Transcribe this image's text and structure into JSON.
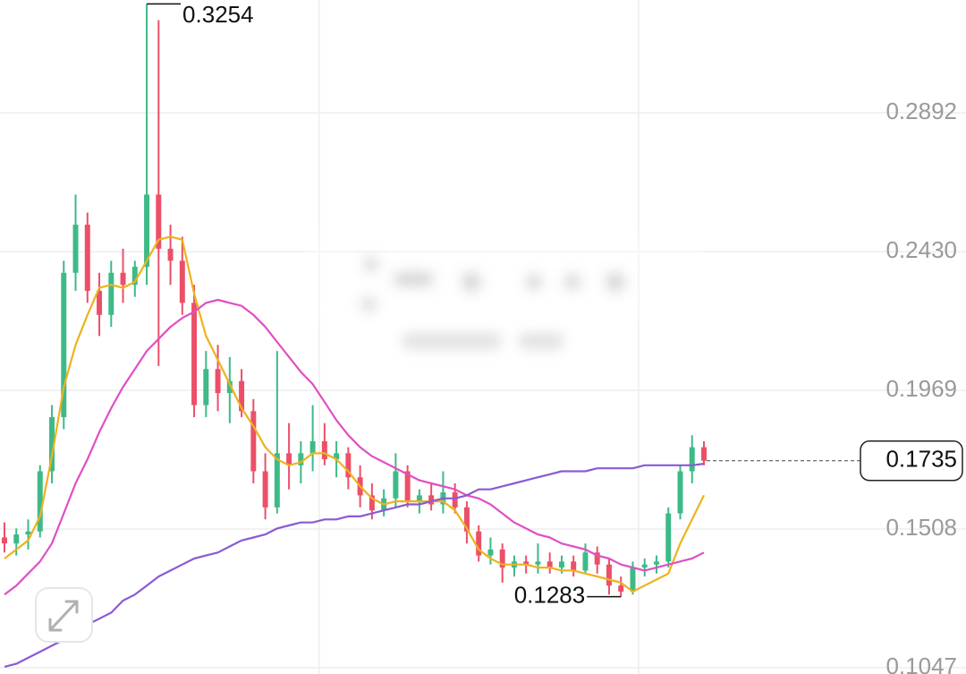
{
  "chart_data": {
    "type": "candlestick",
    "open": [
      0.148,
      0.146,
      0.149,
      0.15,
      0.17,
      0.188,
      0.236,
      0.252,
      0.23,
      0.222,
      0.236,
      0.232,
      0.238,
      0.262,
      0.244,
      0.24,
      0.226,
      0.192,
      0.204,
      0.196,
      0.2,
      0.19,
      0.17,
      0.158,
      0.176,
      0.172,
      0.176,
      0.18,
      0.174,
      0.176,
      0.168,
      0.162,
      0.157,
      0.161,
      0.17,
      0.16,
      0.162,
      0.159,
      0.163,
      0.158,
      0.15,
      0.142,
      0.144,
      0.138,
      0.14,
      0.139,
      0.14,
      0.138,
      0.14,
      0.137,
      0.143,
      0.139,
      0.132,
      0.13,
      0.138,
      0.139,
      0.14,
      0.156,
      0.17,
      0.178
    ],
    "high": [
      0.153,
      0.151,
      0.154,
      0.172,
      0.192,
      0.24,
      0.262,
      0.256,
      0.236,
      0.24,
      0.244,
      0.24,
      0.3254,
      0.32,
      0.252,
      0.248,
      0.232,
      0.21,
      0.212,
      0.208,
      0.204,
      0.194,
      0.176,
      0.21,
      0.186,
      0.18,
      0.192,
      0.186,
      0.18,
      0.178,
      0.172,
      0.166,
      0.164,
      0.176,
      0.172,
      0.164,
      0.166,
      0.17,
      0.166,
      0.16,
      0.152,
      0.148,
      0.146,
      0.142,
      0.142,
      0.146,
      0.143,
      0.142,
      0.142,
      0.146,
      0.145,
      0.141,
      0.135,
      0.14,
      0.141,
      0.142,
      0.158,
      0.172,
      0.182,
      0.18
    ],
    "low": [
      0.143,
      0.142,
      0.144,
      0.148,
      0.166,
      0.184,
      0.23,
      0.226,
      0.215,
      0.218,
      0.226,
      0.228,
      0.232,
      0.205,
      0.232,
      0.222,
      0.188,
      0.188,
      0.19,
      0.186,
      0.188,
      0.166,
      0.154,
      0.156,
      0.164,
      0.166,
      0.17,
      0.172,
      0.168,
      0.164,
      0.158,
      0.154,
      0.155,
      0.158,
      0.158,
      0.156,
      0.157,
      0.156,
      0.156,
      0.146,
      0.14,
      0.139,
      0.133,
      0.135,
      0.136,
      0.136,
      0.136,
      0.136,
      0.135,
      0.136,
      0.136,
      0.129,
      0.1283,
      0.129,
      0.135,
      0.136,
      0.138,
      0.154,
      0.166,
      0.172
    ],
    "close": [
      0.146,
      0.149,
      0.15,
      0.17,
      0.188,
      0.236,
      0.252,
      0.23,
      0.222,
      0.236,
      0.232,
      0.238,
      0.262,
      0.244,
      0.24,
      0.226,
      0.192,
      0.204,
      0.196,
      0.2,
      0.19,
      0.17,
      0.158,
      0.176,
      0.172,
      0.176,
      0.18,
      0.174,
      0.176,
      0.168,
      0.162,
      0.157,
      0.161,
      0.17,
      0.16,
      0.162,
      0.159,
      0.163,
      0.158,
      0.15,
      0.142,
      0.144,
      0.138,
      0.14,
      0.139,
      0.14,
      0.138,
      0.14,
      0.137,
      0.143,
      0.139,
      0.132,
      0.13,
      0.138,
      0.139,
      0.14,
      0.156,
      0.17,
      0.178,
      0.1735
    ],
    "up_color": "#3dba87",
    "down_color": "#ec4f68",
    "lines": [
      {
        "color": "#eeb21c",
        "values": [
          0.141,
          0.144,
          0.147,
          0.155,
          0.175,
          0.198,
          0.212,
          0.222,
          0.231,
          0.232,
          0.231,
          0.233,
          0.24,
          0.247,
          0.248,
          0.247,
          0.229,
          0.215,
          0.207,
          0.199,
          0.191,
          0.185,
          0.178,
          0.174,
          0.172,
          0.173,
          0.176,
          0.176,
          0.174,
          0.17,
          0.165,
          0.161,
          0.159,
          0.16,
          0.16,
          0.16,
          0.16,
          0.16,
          0.157,
          0.151,
          0.144,
          0.141,
          0.139,
          0.139,
          0.139,
          0.138,
          0.138,
          0.137,
          0.137,
          0.136,
          0.135,
          0.134,
          0.133,
          0.13,
          0.132,
          0.134,
          0.136,
          0.146,
          0.154,
          0.162
        ]
      },
      {
        "color": "#e04fc3",
        "values": [
          0.129,
          0.132,
          0.136,
          0.14,
          0.146,
          0.156,
          0.166,
          0.174,
          0.183,
          0.191,
          0.198,
          0.204,
          0.21,
          0.214,
          0.218,
          0.221,
          0.223,
          0.226,
          0.227,
          0.226,
          0.225,
          0.222,
          0.218,
          0.213,
          0.208,
          0.203,
          0.199,
          0.193,
          0.187,
          0.182,
          0.178,
          0.175,
          0.173,
          0.171,
          0.169,
          0.167,
          0.166,
          0.165,
          0.164,
          0.162,
          0.161,
          0.159,
          0.156,
          0.153,
          0.151,
          0.149,
          0.148,
          0.146,
          0.145,
          0.144,
          0.142,
          0.141,
          0.139,
          0.138,
          0.137,
          0.138,
          0.139,
          0.14,
          0.141,
          0.143
        ]
      },
      {
        "color": "#8a5ad4",
        "values": [
          0.105,
          0.106,
          0.108,
          0.11,
          0.112,
          0.114,
          0.117,
          0.119,
          0.121,
          0.123,
          0.127,
          0.129,
          0.132,
          0.135,
          0.137,
          0.139,
          0.141,
          0.142,
          0.143,
          0.145,
          0.147,
          0.148,
          0.149,
          0.151,
          0.152,
          0.153,
          0.153,
          0.154,
          0.154,
          0.155,
          0.155,
          0.156,
          0.157,
          0.158,
          0.159,
          0.159,
          0.16,
          0.161,
          0.161,
          0.162,
          0.164,
          0.164,
          0.165,
          0.166,
          0.167,
          0.168,
          0.169,
          0.17,
          0.17,
          0.17,
          0.171,
          0.171,
          0.171,
          0.171,
          0.172,
          0.172,
          0.172,
          0.172,
          0.172,
          0.1725
        ]
      }
    ],
    "ylim": [
      0.1026,
      0.3267
    ],
    "yticks": [
      0.2892,
      {
        "value": 0.243,
        "label": "0.2430"
      },
      0.1969,
      0.1508,
      0.1047
    ],
    "grid": true,
    "max_marker": 0.3254,
    "min_marker": 0.1283,
    "last_price": 0.1735
  }
}
